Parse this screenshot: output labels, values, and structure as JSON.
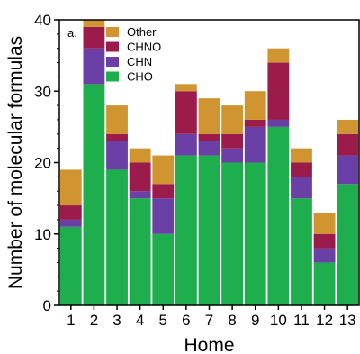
{
  "chart_data": {
    "type": "bar",
    "stacked": true,
    "panel_label": "a.",
    "xlabel": "Home",
    "ylabel": "Number of molecular formulas",
    "categories": [
      "1",
      "2",
      "3",
      "4",
      "5",
      "6",
      "7",
      "8",
      "9",
      "10",
      "11",
      "12",
      "13"
    ],
    "ylim": [
      0,
      40
    ],
    "yticks": [
      0,
      10,
      20,
      30,
      40
    ],
    "grid": false,
    "legend_position": "top-left",
    "series": [
      {
        "name": "CHO",
        "color": "#1fae4e",
        "values": [
          11,
          31,
          19,
          15,
          10,
          21,
          21,
          20,
          20,
          25,
          15,
          6,
          17
        ]
      },
      {
        "name": "CHN",
        "color": "#6a3fa6",
        "values": [
          1,
          5,
          4,
          1,
          5,
          3,
          2,
          2,
          5,
          1,
          3,
          2,
          4
        ]
      },
      {
        "name": "CHNO",
        "color": "#9b1b4a",
        "values": [
          2,
          3,
          1,
          4,
          2,
          6,
          1,
          2,
          1,
          8,
          2,
          2,
          3
        ]
      },
      {
        "name": "Other",
        "color": "#d09430",
        "values": [
          5,
          1,
          4,
          2,
          4,
          1,
          5,
          4,
          4,
          2,
          2,
          3,
          2
        ]
      }
    ],
    "legend_order": [
      "Other",
      "CHNO",
      "CHN",
      "CHO"
    ]
  }
}
